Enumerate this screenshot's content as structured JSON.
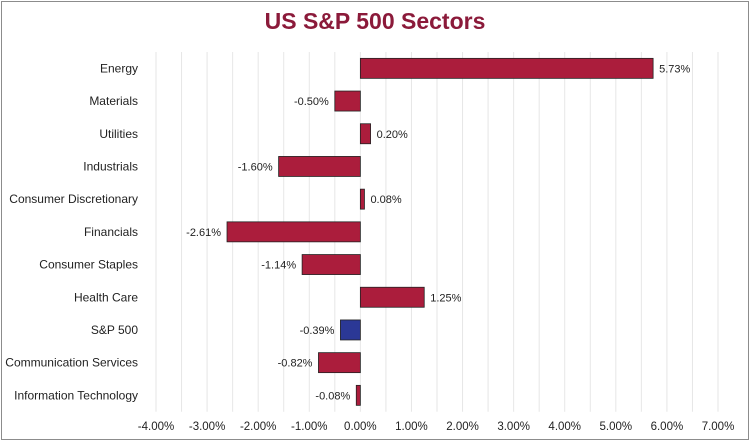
{
  "chart_data": {
    "type": "bar",
    "orientation": "horizontal",
    "title": "US S&P 500 Sectors",
    "xlabel": "",
    "ylabel": "",
    "xlim": [
      -4,
      7
    ],
    "x_ticks": [
      -4,
      -3,
      -2,
      -1,
      0,
      1,
      2,
      3,
      4,
      5,
      6,
      7
    ],
    "x_tick_labels": [
      "-4.00%",
      "-3.00%",
      "-2.00%",
      "-1.00%",
      "0.00%",
      "1.00%",
      "2.00%",
      "3.00%",
      "4.00%",
      "5.00%",
      "6.00%",
      "7.00%"
    ],
    "grid": "vertical",
    "categories": [
      "Energy",
      "Materials",
      "Utilities",
      "Industrials",
      "Consumer Discretionary",
      "Financials",
      "Consumer Staples",
      "Health Care",
      "S&P 500",
      "Communication Services",
      "Information Technology"
    ],
    "values": [
      5.73,
      -0.5,
      0.2,
      -1.6,
      0.08,
      -2.61,
      -1.14,
      1.25,
      -0.39,
      -0.82,
      -0.08
    ],
    "value_labels": [
      "5.73%",
      "-0.50%",
      "0.20%",
      "-1.60%",
      "0.08%",
      "-2.61%",
      "-1.14%",
      "1.25%",
      "-0.39%",
      "-0.82%",
      "-0.08%"
    ],
    "colors": {
      "title": "#8b1a3a",
      "bar": "#ab1d3c",
      "highlight_bar": "#2b3896",
      "bar_border": "#222222",
      "grid": "#e6e6e6"
    },
    "highlight_category": "S&P 500"
  }
}
